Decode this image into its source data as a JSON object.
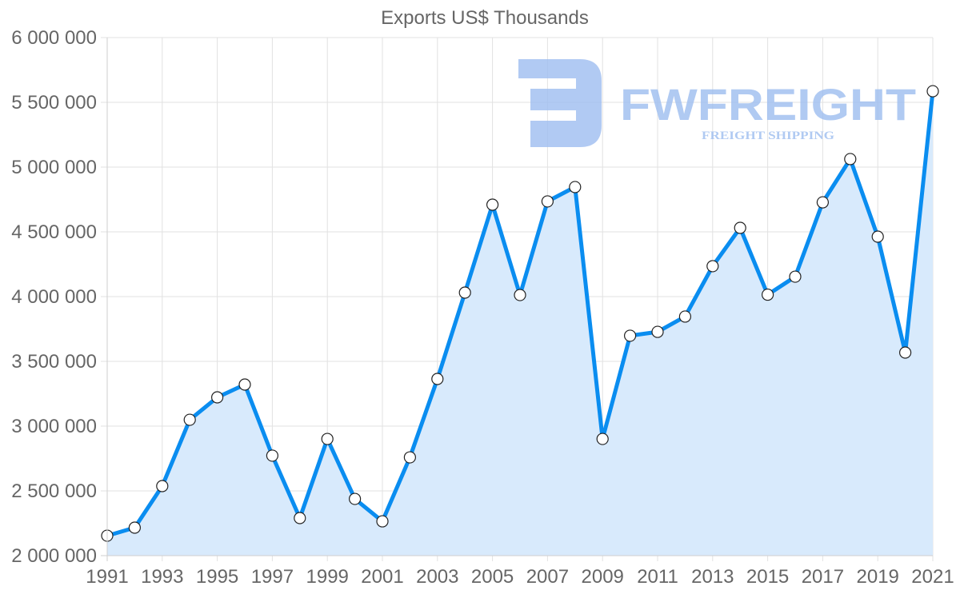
{
  "chart_data": {
    "type": "area",
    "title": "Exports US$ Thousands",
    "xlabel": "",
    "ylabel": "",
    "x": [
      1991,
      1992,
      1993,
      1994,
      1995,
      1996,
      1997,
      1998,
      1999,
      2000,
      2001,
      2002,
      2003,
      2004,
      2005,
      2006,
      2007,
      2008,
      2009,
      2010,
      2011,
      2012,
      2013,
      2014,
      2015,
      2016,
      2017,
      2018,
      2019,
      2020,
      2021
    ],
    "series": [
      {
        "name": "Exports US$ Thousands",
        "values": [
          2154000,
          2216000,
          2537000,
          3049000,
          3222000,
          3321000,
          2772000,
          2290000,
          2901000,
          2438000,
          2265000,
          2759000,
          3364000,
          4031000,
          4710000,
          4012000,
          4735000,
          4846000,
          2901000,
          3698000,
          3728000,
          3846000,
          4235000,
          4531000,
          4015000,
          4154000,
          4728000,
          5062000,
          4463000,
          3568000,
          5586000
        ]
      }
    ],
    "ylim": [
      2000000,
      6000000
    ],
    "xlim": [
      1991,
      2021
    ],
    "y_ticks": [
      2000000,
      2500000,
      3000000,
      3500000,
      4000000,
      4500000,
      5000000,
      5500000,
      6000000
    ],
    "y_tick_labels": [
      "2 000 000",
      "2 500 000",
      "3 000 000",
      "3 500 000",
      "4 000 000",
      "4 500 000",
      "5 000 000",
      "5 500 000",
      "6 000 000"
    ],
    "x_tick_labels": [
      "1991",
      "1993",
      "1995",
      "1997",
      "1999",
      "2001",
      "2003",
      "2005",
      "2007",
      "2009",
      "2011",
      "2013",
      "2015",
      "2017",
      "2019",
      "2021"
    ],
    "grid": true,
    "legend": "none",
    "colors": {
      "line": "#0a8df0",
      "fill": "#d8eafc",
      "marker_fill": "#ffffff",
      "marker_stroke": "#222222",
      "grid": "#e2e2e2",
      "axis_text": "#666666"
    }
  },
  "watermark": {
    "brand": "FWFREIGHT",
    "tagline": "FREIGHT SHIPPING",
    "color": "#9dbdf0"
  }
}
